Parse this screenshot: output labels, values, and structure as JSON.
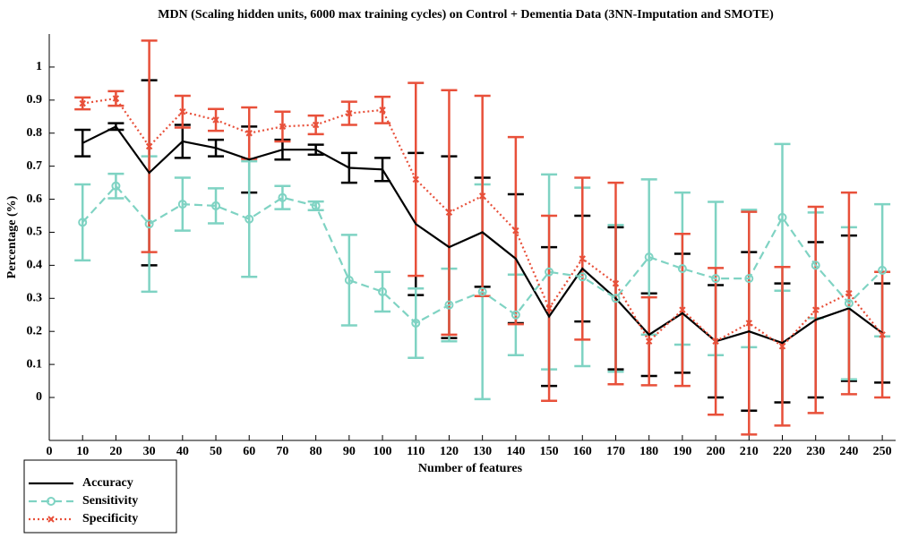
{
  "chart_data": {
    "type": "errorbar-line",
    "title": "MDN (Scaling hidden units, 6000 max training cycles) on Control + Dementia Data (3NN-Imputation and SMOTE)",
    "xlabel": "Number of features",
    "ylabel": "Percentage (%)",
    "x": [
      10,
      20,
      30,
      40,
      50,
      60,
      70,
      80,
      90,
      100,
      110,
      120,
      130,
      140,
      150,
      160,
      170,
      180,
      190,
      200,
      210,
      220,
      230,
      240,
      250
    ],
    "xlim": [
      0,
      254
    ],
    "xticks": [
      0,
      10,
      20,
      30,
      40,
      50,
      60,
      70,
      80,
      90,
      100,
      110,
      120,
      130,
      140,
      150,
      160,
      170,
      180,
      190,
      200,
      210,
      220,
      230,
      240,
      250
    ],
    "ylim": [
      -0.13,
      1.1
    ],
    "yticks": [
      0,
      0.1,
      0.2,
      0.3,
      0.4,
      0.5,
      0.6,
      0.7,
      0.8,
      0.9,
      1
    ],
    "legend": "below-left",
    "series": [
      {
        "name": "Accuracy",
        "color": "#000000",
        "dash": "solid",
        "marker": "none",
        "values": [
          0.77,
          0.82,
          0.68,
          0.775,
          0.755,
          0.72,
          0.75,
          0.75,
          0.695,
          0.69,
          0.525,
          0.455,
          0.5,
          0.42,
          0.245,
          0.39,
          0.3,
          0.19,
          0.255,
          0.17,
          0.2,
          0.165,
          0.235,
          0.27,
          0.195
        ],
        "errors": [
          0.04,
          0.01,
          0.28,
          0.05,
          0.025,
          0.1,
          0.03,
          0.015,
          0.045,
          0.035,
          0.215,
          0.275,
          0.165,
          0.195,
          0.21,
          0.16,
          0.215,
          0.125,
          0.18,
          0.17,
          0.24,
          0.18,
          0.235,
          0.22,
          0.15
        ]
      },
      {
        "name": "Sensitivity",
        "color": "#7fd3c3",
        "dash": "dashed",
        "marker": "circle",
        "values": [
          0.53,
          0.64,
          0.525,
          0.585,
          0.58,
          0.54,
          0.605,
          0.58,
          0.355,
          0.32,
          0.225,
          0.28,
          0.32,
          0.25,
          0.38,
          0.365,
          0.3,
          0.425,
          0.39,
          0.36,
          0.36,
          0.545,
          0.4,
          0.285,
          0.385
        ],
        "errors": [
          0.115,
          0.037,
          0.205,
          0.08,
          0.053,
          0.175,
          0.035,
          0.013,
          0.137,
          0.06,
          0.105,
          0.11,
          0.325,
          0.122,
          0.295,
          0.27,
          0.222,
          0.235,
          0.23,
          0.232,
          0.208,
          0.222,
          0.16,
          0.23,
          0.2
        ]
      },
      {
        "name": "Specificity",
        "color": "#e8503a",
        "dash": "dotted",
        "marker": "cross",
        "values": [
          0.89,
          0.905,
          0.76,
          0.865,
          0.84,
          0.8,
          0.82,
          0.825,
          0.86,
          0.87,
          0.66,
          0.56,
          0.61,
          0.505,
          0.27,
          0.42,
          0.345,
          0.17,
          0.265,
          0.17,
          0.225,
          0.155,
          0.265,
          0.315,
          0.19
        ],
        "errors": [
          0.018,
          0.022,
          0.32,
          0.048,
          0.033,
          0.078,
          0.045,
          0.028,
          0.035,
          0.04,
          0.292,
          0.37,
          0.303,
          0.283,
          0.28,
          0.245,
          0.305,
          0.133,
          0.23,
          0.222,
          0.337,
          0.24,
          0.312,
          0.305,
          0.19
        ]
      }
    ]
  }
}
